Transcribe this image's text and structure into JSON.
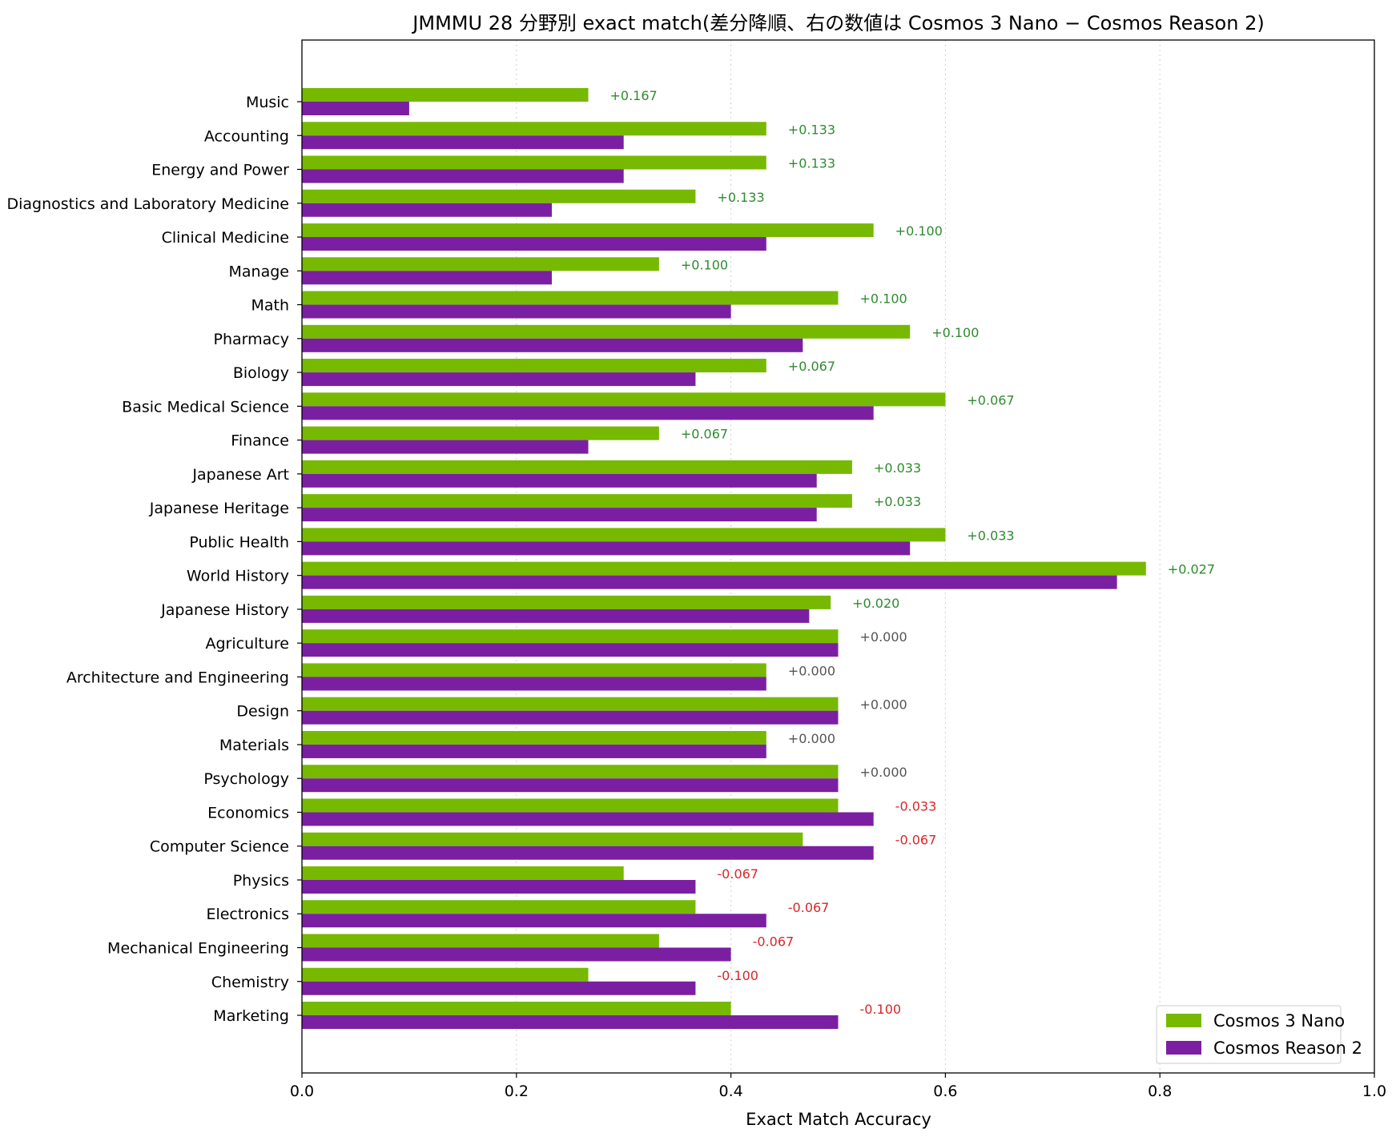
{
  "chart_data": {
    "type": "bar",
    "orientation": "horizontal",
    "title": "JMMMU 28 分野別 exact match(差分降順、右の数値は Cosmos 3 Nano − Cosmos Reason 2)",
    "xlabel": "Exact Match Accuracy",
    "ylabel": "",
    "xlim": [
      0,
      1.0
    ],
    "xticks": [
      "0.0",
      "0.2",
      "0.4",
      "0.6",
      "0.8",
      "1.0"
    ],
    "grid": "x-dotted",
    "legend_position": "bottom-right",
    "categories": [
      "Music",
      "Accounting",
      "Energy and Power",
      "Diagnostics and Laboratory Medicine",
      "Clinical Medicine",
      "Manage",
      "Math",
      "Pharmacy",
      "Biology",
      "Basic Medical Science",
      "Finance",
      "Japanese Art",
      "Japanese Heritage",
      "Public Health",
      "World History",
      "Japanese History",
      "Agriculture",
      "Architecture and Engineering",
      "Design",
      "Materials",
      "Psychology",
      "Economics",
      "Computer Science",
      "Physics",
      "Electronics",
      "Mechanical Engineering",
      "Chemistry",
      "Marketing"
    ],
    "series": [
      {
        "name": "Cosmos 3 Nano",
        "color": "#76b900",
        "values": [
          0.267,
          0.433,
          0.433,
          0.367,
          0.533,
          0.333,
          0.5,
          0.567,
          0.433,
          0.6,
          0.333,
          0.513,
          0.513,
          0.6,
          0.787,
          0.493,
          0.5,
          0.433,
          0.5,
          0.433,
          0.5,
          0.5,
          0.467,
          0.3,
          0.367,
          0.333,
          0.267,
          0.4
        ]
      },
      {
        "name": "Cosmos Reason 2",
        "color": "#7b1fa2",
        "values": [
          0.1,
          0.3,
          0.3,
          0.233,
          0.433,
          0.233,
          0.4,
          0.467,
          0.367,
          0.533,
          0.267,
          0.48,
          0.48,
          0.567,
          0.76,
          0.473,
          0.5,
          0.433,
          0.5,
          0.433,
          0.5,
          0.533,
          0.533,
          0.367,
          0.433,
          0.4,
          0.367,
          0.5
        ]
      }
    ],
    "diff_labels": [
      "+0.167",
      "+0.133",
      "+0.133",
      "+0.133",
      "+0.100",
      "+0.100",
      "+0.100",
      "+0.100",
      "+0.067",
      "+0.067",
      "+0.067",
      "+0.033",
      "+0.033",
      "+0.033",
      "+0.027",
      "+0.020",
      "+0.000",
      "+0.000",
      "+0.000",
      "+0.000",
      "+0.000",
      "-0.033",
      "-0.067",
      "-0.067",
      "-0.067",
      "-0.067",
      "-0.100",
      "-0.100"
    ],
    "diff_colors": {
      "positive": "#2e8b2e",
      "zero": "#555555",
      "negative": "#d62728"
    }
  }
}
